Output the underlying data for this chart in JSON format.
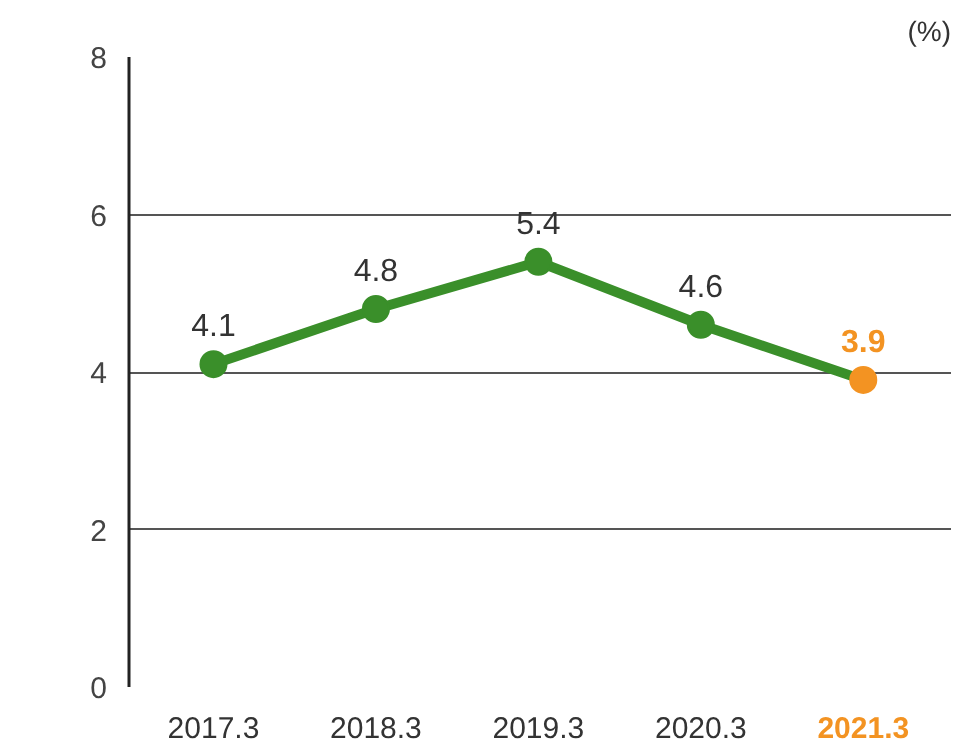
{
  "chart_data": {
    "type": "line",
    "ylabel": "(%)",
    "categories": [
      "2017.3",
      "2018.3",
      "2019.3",
      "2020.3",
      "2021.3"
    ],
    "series": [
      {
        "color": "#3a8f2a",
        "colors": [
          "#3a8f2a",
          "#3a8f2a",
          "#3a8f2a",
          "#3a8f2a",
          "#f39322"
        ],
        "values": [
          4.1,
          4.8,
          5.4,
          4.6,
          3.9
        ]
      }
    ],
    "ylim": [
      0,
      8
    ],
    "yticks": [
      0,
      2,
      4,
      6,
      8
    ],
    "grid": "y",
    "marker": "circle",
    "line_style": "solid",
    "data_labels": true
  }
}
